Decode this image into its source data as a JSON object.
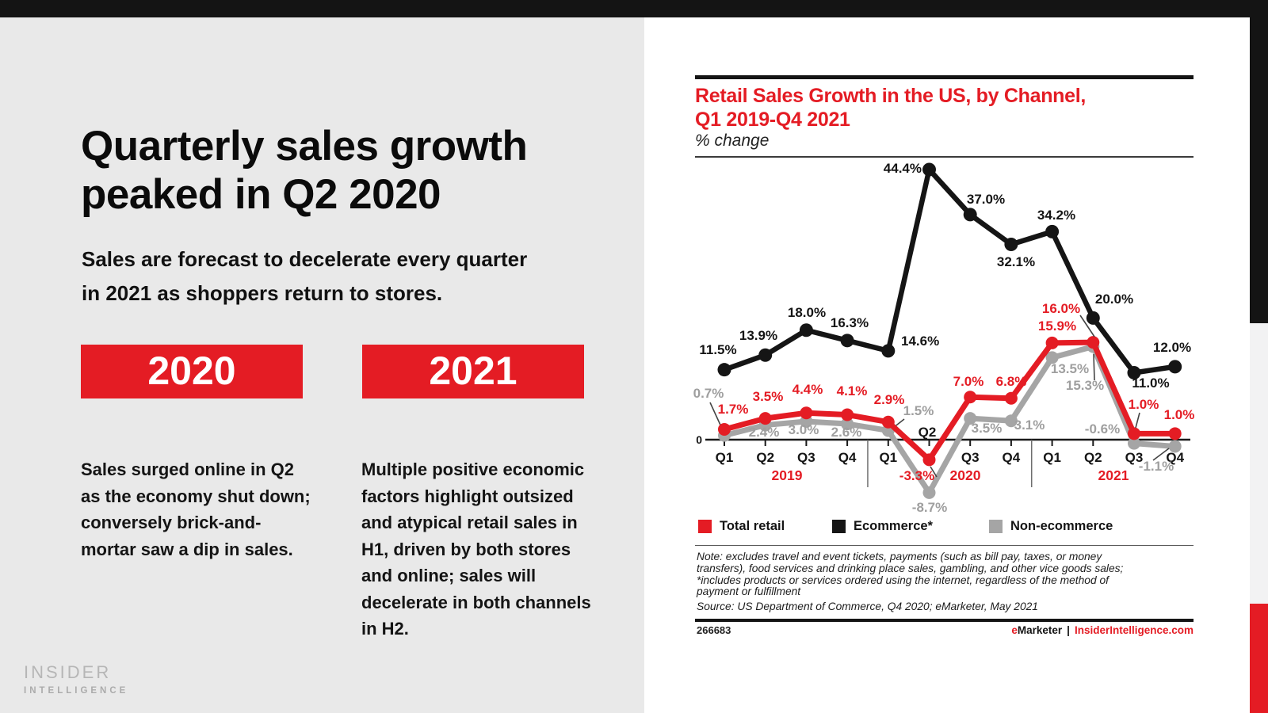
{
  "slide": {
    "title": "Quarterly sales growth peaked in Q2 2020",
    "subtitle": "Sales are forecast to decelerate every quarter in 2021 as shoppers return to stores.",
    "columns": [
      {
        "badge": "2020",
        "body": "Sales surged online in Q2 as the economy shut down; conversely brick-and-mortar saw a dip in sales."
      },
      {
        "badge": "2021",
        "body": "Multiple positive economic factors highlight outsized and atypical retail sales in H1, driven by both stores and online; sales will decelerate in both channels in H2."
      }
    ],
    "logo": {
      "line1": "INSIDER",
      "line2": "INTELLIGENCE"
    }
  },
  "chart_panel": {
    "title_line1": "Retail Sales Growth in the US, by Channel,",
    "title_line2": "Q1 2019-Q4 2021",
    "subtitle": "% change",
    "note_lines": [
      "Note: excludes travel and event tickets, payments (such as bill pay, taxes, or money",
      "transfers), food services and drinking place sales, gambling, and other vice goods sales;",
      "*includes products or services ordered using the internet, regardless of the method of",
      "payment or fulfillment",
      "Source: US Department of Commerce, Q4 2020; eMarketer, May 2021"
    ],
    "footer": {
      "chart_id": "266683",
      "brand_accent": "e",
      "brand_rest": "Marketer",
      "divider": "|",
      "site": "InsiderIntelligence.com"
    }
  },
  "chart_data": {
    "type": "line",
    "title": "Retail Sales Growth in the US, by Channel, Q1 2019-Q4 2021",
    "ylabel": "% change",
    "ylim": [
      -10,
      47
    ],
    "grid": false,
    "legend_position": "bottom",
    "x_axis": {
      "quarters": [
        "Q1",
        "Q2",
        "Q3",
        "Q4",
        "Q1",
        "Q2",
        "Q3",
        "Q4",
        "Q1",
        "Q2",
        "Q3",
        "Q4"
      ],
      "years": [
        "2019",
        "2020",
        "2021"
      ],
      "baseline_label": "0"
    },
    "series": [
      {
        "name": "Total retail",
        "color": "#e41c24",
        "values": [
          1.7,
          3.5,
          4.4,
          4.1,
          2.9,
          -3.3,
          7.0,
          6.8,
          15.9,
          16.0,
          1.0,
          1.0
        ],
        "labels": [
          "1.7%",
          "3.5%",
          "4.4%",
          "4.1%",
          "2.9%",
          "-3.3%",
          "7.0%",
          "6.8%",
          "15.9%",
          "16.0%",
          "1.0%",
          "1.0%"
        ]
      },
      {
        "name": "Ecommerce*",
        "color": "#151515",
        "values": [
          11.5,
          13.9,
          18.0,
          16.3,
          14.6,
          44.4,
          37.0,
          32.1,
          34.2,
          20.0,
          11.0,
          12.0
        ],
        "labels": [
          "11.5%",
          "13.9%",
          "18.0%",
          "16.3%",
          "14.6%",
          "44.4%",
          "37.0%",
          "32.1%",
          "34.2%",
          "20.0%",
          "11.0%",
          "12.0%"
        ]
      },
      {
        "name": "Non-ecommerce",
        "color": "#a5a5a5",
        "values": [
          0.7,
          2.4,
          3.0,
          2.6,
          1.5,
          -8.7,
          3.5,
          3.1,
          13.5,
          15.3,
          -0.6,
          -1.1
        ],
        "labels": [
          "0.7%",
          "2.4%",
          "3.0%",
          "2.6%",
          "1.5%",
          "-8.7%",
          "3.5%",
          "3.1%",
          "13.5%",
          "15.3%",
          "-0.6%",
          "-1.1%"
        ]
      }
    ]
  },
  "colors": {
    "accent_red": "#e41c24",
    "ecommerce_black": "#151515",
    "non_ecommerce_gray": "#a5a5a5",
    "left_panel_bg": "#e9e9e9",
    "right_strip_gray": "#f2f2f3",
    "logo_gray": "#b6b6b6"
  }
}
